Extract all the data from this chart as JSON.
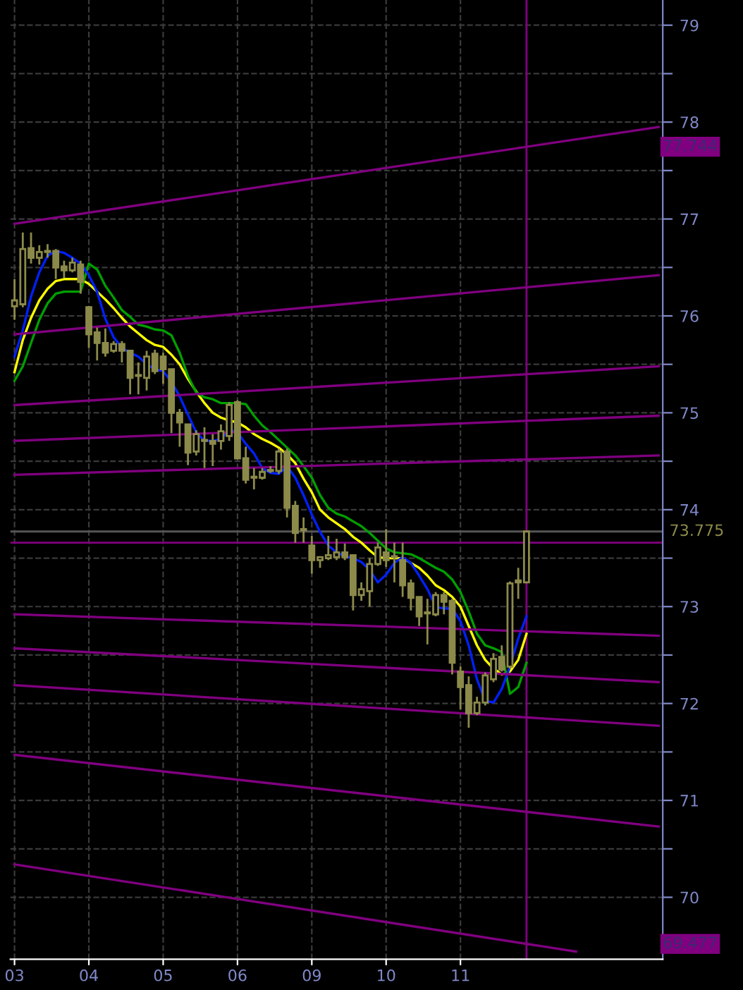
{
  "chart_data": {
    "type": "candlestick",
    "color": "#8c8a4a",
    "categories": [
      "03",
      null,
      null,
      null,
      null,
      null,
      null,
      null,
      null,
      "04",
      null,
      null,
      null,
      null,
      null,
      null,
      null,
      null,
      "05",
      null,
      null,
      null,
      null,
      null,
      null,
      null,
      null,
      "06",
      null,
      null,
      null,
      null,
      null,
      null,
      null,
      null,
      "09",
      null,
      null,
      null,
      null,
      null,
      null,
      null,
      null,
      "10",
      null,
      null,
      null,
      null,
      null,
      null,
      null,
      null,
      "11",
      null,
      null,
      null,
      null,
      null,
      null,
      null,
      null,
      null,
      null,
      null,
      null,
      null,
      null,
      null,
      null,
      null,
      null,
      null,
      null,
      null,
      null,
      null,
      null
    ],
    "ohlc": [
      [
        76.1,
        76.38,
        75.96,
        76.16
      ],
      [
        76.12,
        76.86,
        76.09,
        76.69
      ],
      [
        76.7,
        76.86,
        76.54,
        76.6
      ],
      [
        76.6,
        76.73,
        76.53,
        76.66
      ],
      [
        76.67,
        76.74,
        76.6,
        76.66
      ],
      [
        76.67,
        76.69,
        76.38,
        76.5
      ],
      [
        76.51,
        76.57,
        76.39,
        76.47
      ],
      [
        76.47,
        76.6,
        76.45,
        76.55
      ],
      [
        76.53,
        76.57,
        76.23,
        76.35
      ],
      [
        76.09,
        76.1,
        75.67,
        75.81
      ],
      [
        75.83,
        75.88,
        75.54,
        75.72
      ],
      [
        75.72,
        75.87,
        75.58,
        75.62
      ],
      [
        75.64,
        75.74,
        75.62,
        75.71
      ],
      [
        75.71,
        75.74,
        75.52,
        75.64
      ],
      [
        75.64,
        75.64,
        75.19,
        75.36
      ],
      [
        75.39,
        75.52,
        75.19,
        75.38
      ],
      [
        75.36,
        75.64,
        75.23,
        75.58
      ],
      [
        75.61,
        75.65,
        75.4,
        75.43
      ],
      [
        75.58,
        75.62,
        75.3,
        75.45
      ],
      [
        75.45,
        75.45,
        74.79,
        75.0
      ],
      [
        75.0,
        75.04,
        74.65,
        74.9
      ],
      [
        74.88,
        74.88,
        74.46,
        74.59
      ],
      [
        74.6,
        74.82,
        74.56,
        74.78
      ],
      [
        74.72,
        74.85,
        74.43,
        74.71
      ],
      [
        74.71,
        74.78,
        74.45,
        74.68
      ],
      [
        74.71,
        74.88,
        74.62,
        74.81
      ],
      [
        74.76,
        75.11,
        74.71,
        75.08
      ],
      [
        75.11,
        75.13,
        74.53,
        74.53
      ],
      [
        74.53,
        74.65,
        74.27,
        74.31
      ],
      [
        74.34,
        74.43,
        74.21,
        74.33
      ],
      [
        74.33,
        74.43,
        74.31,
        74.39
      ],
      [
        74.4,
        74.45,
        74.38,
        74.41
      ],
      [
        74.4,
        74.63,
        74.37,
        74.6
      ],
      [
        74.6,
        74.63,
        73.92,
        74.02
      ],
      [
        74.04,
        74.09,
        73.66,
        73.76
      ],
      [
        73.8,
        73.92,
        73.66,
        73.79
      ],
      [
        73.63,
        73.73,
        73.34,
        73.48
      ],
      [
        73.48,
        73.51,
        73.4,
        73.51
      ],
      [
        73.5,
        73.73,
        73.48,
        73.53
      ],
      [
        73.51,
        73.7,
        73.48,
        73.56
      ],
      [
        73.56,
        73.65,
        73.48,
        73.51
      ],
      [
        73.53,
        73.53,
        72.96,
        73.12
      ],
      [
        73.12,
        73.25,
        73.06,
        73.18
      ],
      [
        73.16,
        73.5,
        73.0,
        73.44
      ],
      [
        73.44,
        73.66,
        73.42,
        73.61
      ],
      [
        73.56,
        73.8,
        73.41,
        73.48
      ],
      [
        73.52,
        73.66,
        73.25,
        73.51
      ],
      [
        73.48,
        73.66,
        73.1,
        73.22
      ],
      [
        73.24,
        73.28,
        72.96,
        73.09
      ],
      [
        73.1,
        73.1,
        72.8,
        72.9
      ],
      [
        72.94,
        73.08,
        72.61,
        72.93
      ],
      [
        72.92,
        73.15,
        72.9,
        73.12
      ],
      [
        73.12,
        73.15,
        72.92,
        73.05
      ],
      [
        73.06,
        73.08,
        72.3,
        72.42
      ],
      [
        72.33,
        72.38,
        71.94,
        72.17
      ],
      [
        72.19,
        72.28,
        71.75,
        71.9
      ],
      [
        71.9,
        72.07,
        71.88,
        72.01
      ],
      [
        72.01,
        72.32,
        71.98,
        72.29
      ],
      [
        72.25,
        72.52,
        72.22,
        72.46
      ],
      [
        72.48,
        72.6,
        72.33,
        72.35
      ],
      [
        72.38,
        73.26,
        72.36,
        73.24
      ],
      [
        73.25,
        73.4,
        73.08,
        73.27
      ],
      [
        73.25,
        73.775,
        73.24,
        73.775
      ],
      null,
      null,
      null,
      null,
      null,
      null,
      null,
      null,
      null,
      null,
      null,
      null,
      null,
      null,
      null,
      null
    ],
    "series": [
      {
        "type": "line",
        "color": "#ffff00",
        "values": [
          75.42,
          75.75,
          75.98,
          76.16,
          76.28,
          76.36,
          76.38,
          76.38,
          76.38,
          76.33,
          76.25,
          76.17,
          76.08,
          75.98,
          75.89,
          75.82,
          75.75,
          75.7,
          75.68,
          75.6,
          75.5,
          75.35,
          75.22,
          75.1,
          75.0,
          74.95,
          74.92,
          74.9,
          74.85,
          74.78,
          74.73,
          74.69,
          74.64,
          74.57,
          74.48,
          74.32,
          74.18,
          74.0,
          73.92,
          73.86,
          73.8,
          73.72,
          73.66,
          73.58,
          73.51,
          73.5,
          73.5,
          73.5,
          73.45,
          73.4,
          73.32,
          73.22,
          73.17,
          73.1,
          73.0,
          72.8,
          72.6,
          72.45,
          72.36,
          72.3,
          72.33,
          72.45,
          72.72,
          null,
          null,
          null,
          null,
          null,
          null,
          null,
          null,
          null,
          null,
          null,
          null,
          null,
          null,
          null,
          null
        ]
      },
      {
        "type": "line",
        "color": "#00a000",
        "values": [
          75.33,
          75.48,
          75.72,
          75.96,
          76.13,
          76.23,
          76.25,
          76.25,
          76.25,
          76.54,
          76.48,
          76.31,
          76.19,
          76.06,
          75.99,
          75.91,
          75.89,
          75.86,
          75.85,
          75.8,
          75.62,
          75.38,
          75.21,
          75.16,
          75.14,
          75.1,
          75.1,
          75.1,
          75.09,
          74.97,
          74.87,
          74.8,
          74.72,
          74.64,
          74.56,
          74.45,
          74.33,
          74.15,
          74.02,
          73.96,
          73.93,
          73.88,
          73.83,
          73.76,
          73.68,
          73.6,
          73.56,
          73.55,
          73.54,
          73.5,
          73.45,
          73.4,
          73.36,
          73.28,
          73.15,
          72.95,
          72.72,
          72.6,
          72.57,
          72.53,
          72.1,
          72.17,
          72.42,
          null,
          null,
          null,
          null,
          null,
          null,
          null,
          null,
          null,
          null,
          null,
          null,
          null,
          null,
          null,
          null
        ]
      },
      {
        "type": "line",
        "color": "#0020ff",
        "values": [
          75.58,
          75.85,
          76.2,
          76.45,
          76.62,
          76.67,
          76.65,
          76.6,
          76.54,
          76.42,
          76.25,
          75.97,
          75.78,
          75.67,
          75.62,
          75.58,
          75.5,
          75.45,
          75.43,
          75.32,
          75.17,
          74.98,
          74.8,
          74.71,
          74.71,
          74.73,
          74.82,
          74.8,
          74.68,
          74.58,
          74.43,
          74.38,
          74.37,
          74.45,
          74.33,
          74.15,
          73.95,
          73.77,
          73.63,
          73.56,
          73.52,
          73.5,
          73.46,
          73.38,
          73.25,
          73.33,
          73.45,
          73.51,
          73.45,
          73.32,
          73.18,
          73.0,
          72.98,
          72.98,
          72.85,
          72.6,
          72.25,
          72.03,
          72.01,
          72.15,
          72.38,
          72.67,
          72.9,
          null,
          null,
          null,
          null,
          null,
          null,
          null,
          null,
          null,
          null,
          null,
          null,
          null,
          null,
          null,
          null
        ]
      },
      {
        "type": "line",
        "color": "#800080",
        "name": "77.744",
        "values": [
          76.95,
          null,
          null,
          null,
          null,
          null,
          null,
          null,
          null,
          null,
          null,
          null,
          null,
          null,
          null,
          null,
          null,
          null,
          null,
          null,
          null,
          null,
          null,
          null,
          null,
          null,
          null,
          null,
          null,
          null,
          null,
          null,
          null,
          null,
          null,
          null,
          null,
          null,
          null,
          null,
          null,
          null,
          null,
          null,
          null,
          null,
          null,
          null,
          null,
          null,
          null,
          null,
          null,
          null,
          null,
          null,
          null,
          null,
          null,
          null,
          null,
          null,
          null,
          null,
          null,
          null,
          null,
          null,
          null,
          null,
          null,
          null,
          null,
          null,
          null,
          null,
          null,
          null,
          77.95
        ]
      },
      {
        "type": "line",
        "color": "#800080",
        "values": [
          75.81,
          null,
          null,
          null,
          null,
          null,
          null,
          null,
          null,
          null,
          null,
          null,
          null,
          null,
          null,
          null,
          null,
          null,
          null,
          null,
          null,
          null,
          null,
          null,
          null,
          null,
          null,
          null,
          null,
          null,
          null,
          null,
          null,
          null,
          null,
          null,
          null,
          null,
          null,
          null,
          null,
          null,
          null,
          null,
          null,
          null,
          null,
          null,
          null,
          null,
          null,
          null,
          null,
          null,
          null,
          null,
          null,
          null,
          null,
          null,
          null,
          null,
          null,
          null,
          null,
          null,
          null,
          null,
          null,
          null,
          null,
          null,
          null,
          null,
          null,
          null,
          null,
          null,
          76.42
        ]
      },
      {
        "type": "line",
        "color": "#800080",
        "values": [
          75.08,
          null,
          null,
          null,
          null,
          null,
          null,
          null,
          null,
          null,
          null,
          null,
          null,
          null,
          null,
          null,
          null,
          null,
          null,
          null,
          null,
          null,
          null,
          null,
          null,
          null,
          null,
          null,
          null,
          null,
          null,
          null,
          null,
          null,
          null,
          null,
          null,
          null,
          null,
          null,
          null,
          null,
          null,
          null,
          null,
          null,
          null,
          null,
          null,
          null,
          null,
          null,
          null,
          null,
          null,
          null,
          null,
          null,
          null,
          null,
          null,
          null,
          null,
          null,
          null,
          null,
          null,
          null,
          null,
          null,
          null,
          null,
          null,
          null,
          null,
          null,
          null,
          null,
          75.48
        ]
      },
      {
        "type": "line",
        "color": "#800080",
        "values": [
          74.71,
          null,
          null,
          null,
          null,
          null,
          null,
          null,
          null,
          null,
          null,
          null,
          null,
          null,
          null,
          null,
          null,
          null,
          null,
          null,
          null,
          null,
          null,
          null,
          null,
          null,
          null,
          null,
          null,
          null,
          null,
          null,
          null,
          null,
          null,
          null,
          null,
          null,
          null,
          null,
          null,
          null,
          null,
          null,
          null,
          null,
          null,
          null,
          null,
          null,
          null,
          null,
          null,
          null,
          null,
          null,
          null,
          null,
          null,
          null,
          null,
          null,
          null,
          null,
          null,
          null,
          null,
          null,
          null,
          null,
          null,
          null,
          null,
          null,
          null,
          null,
          null,
          null,
          74.97
        ]
      },
      {
        "type": "line",
        "color": "#800080",
        "values": [
          74.36,
          null,
          null,
          null,
          null,
          null,
          null,
          null,
          null,
          null,
          null,
          null,
          null,
          null,
          null,
          null,
          null,
          null,
          null,
          null,
          null,
          null,
          null,
          null,
          null,
          null,
          null,
          null,
          null,
          null,
          null,
          null,
          null,
          null,
          null,
          null,
          null,
          null,
          null,
          null,
          null,
          null,
          null,
          null,
          null,
          null,
          null,
          null,
          null,
          null,
          null,
          null,
          null,
          null,
          null,
          null,
          null,
          null,
          null,
          null,
          null,
          null,
          null,
          null,
          null,
          null,
          null,
          null,
          null,
          null,
          null,
          null,
          null,
          null,
          null,
          null,
          null,
          null,
          74.56
        ]
      },
      {
        "type": "line",
        "color": "#800080",
        "values": [
          72.92,
          null,
          null,
          null,
          null,
          null,
          null,
          null,
          null,
          null,
          null,
          null,
          null,
          null,
          null,
          null,
          null,
          null,
          null,
          null,
          null,
          null,
          null,
          null,
          null,
          null,
          null,
          null,
          null,
          null,
          null,
          null,
          null,
          null,
          null,
          null,
          null,
          null,
          null,
          null,
          null,
          null,
          null,
          null,
          null,
          null,
          null,
          null,
          null,
          null,
          null,
          null,
          null,
          null,
          null,
          null,
          null,
          null,
          null,
          null,
          null,
          null,
          null,
          null,
          null,
          null,
          null,
          null,
          null,
          null,
          null,
          null,
          null,
          null,
          null,
          null,
          null,
          null,
          72.7
        ]
      },
      {
        "type": "line",
        "color": "#800080",
        "values": [
          72.57,
          null,
          null,
          null,
          null,
          null,
          null,
          null,
          null,
          null,
          null,
          null,
          null,
          null,
          null,
          null,
          null,
          null,
          null,
          null,
          null,
          null,
          null,
          null,
          null,
          null,
          null,
          null,
          null,
          null,
          null,
          null,
          null,
          null,
          null,
          null,
          null,
          null,
          null,
          null,
          null,
          null,
          null,
          null,
          null,
          null,
          null,
          null,
          null,
          null,
          null,
          null,
          null,
          null,
          null,
          null,
          null,
          null,
          null,
          null,
          null,
          null,
          null,
          null,
          null,
          null,
          null,
          null,
          null,
          null,
          null,
          null,
          null,
          null,
          null,
          null,
          null,
          null,
          72.22
        ]
      },
      {
        "type": "line",
        "color": "#800080",
        "values": [
          72.19,
          null,
          null,
          null,
          null,
          null,
          null,
          null,
          null,
          null,
          null,
          null,
          null,
          null,
          null,
          null,
          null,
          null,
          null,
          null,
          null,
          null,
          null,
          null,
          null,
          null,
          null,
          null,
          null,
          null,
          null,
          null,
          null,
          null,
          null,
          null,
          null,
          null,
          null,
          null,
          null,
          null,
          null,
          null,
          null,
          null,
          null,
          null,
          null,
          null,
          null,
          null,
          null,
          null,
          null,
          null,
          null,
          null,
          null,
          null,
          null,
          null,
          null,
          null,
          null,
          null,
          null,
          null,
          null,
          null,
          null,
          null,
          null,
          null,
          null,
          null,
          null,
          null,
          71.77
        ]
      },
      {
        "type": "line",
        "color": "#800080",
        "values": [
          71.47,
          null,
          null,
          null,
          null,
          null,
          null,
          null,
          null,
          null,
          null,
          null,
          null,
          null,
          null,
          null,
          null,
          null,
          null,
          null,
          null,
          null,
          null,
          null,
          null,
          null,
          null,
          null,
          null,
          null,
          null,
          null,
          null,
          null,
          null,
          null,
          null,
          null,
          null,
          null,
          null,
          null,
          null,
          null,
          null,
          null,
          null,
          null,
          null,
          null,
          null,
          null,
          null,
          null,
          null,
          null,
          null,
          null,
          null,
          null,
          null,
          null,
          null,
          null,
          null,
          null,
          null,
          null,
          null,
          null,
          null,
          null,
          null,
          null,
          null,
          null,
          null,
          null,
          70.73
        ]
      },
      {
        "type": "line",
        "color": "#800080",
        "name": "69.477",
        "values": [
          70.34,
          null,
          null,
          null,
          null,
          null,
          null,
          null,
          null,
          null,
          null,
          null,
          null,
          null,
          null,
          null,
          null,
          null,
          null,
          null,
          null,
          null,
          null,
          null,
          null,
          null,
          null,
          null,
          null,
          null,
          null,
          null,
          null,
          null,
          null,
          null,
          null,
          null,
          null,
          null,
          null,
          null,
          null,
          null,
          null,
          null,
          null,
          null,
          null,
          null,
          null,
          null,
          null,
          null,
          null,
          null,
          null,
          null,
          null,
          null,
          null,
          null,
          null,
          null,
          null,
          null,
          null,
          null,
          69.44,
          null,
          null,
          null,
          null,
          null,
          null,
          null,
          null,
          null,
          null
        ]
      }
    ],
    "ref_lines": [
      {
        "axis": "y",
        "value": 73.66,
        "color": "#800080"
      },
      {
        "axis": "y",
        "value": 73.775,
        "label": "73.775",
        "color": "#555555"
      }
    ],
    "ylim": [
      69.36,
      79.26
    ],
    "yticks": [
      70,
      {
        "value": 70.5,
        "label": null
      },
      71,
      {
        "value": 71.5,
        "label": null
      },
      72,
      {
        "value": 72.5,
        "label": null
      },
      73,
      {
        "value": 73.5,
        "label": null
      },
      74,
      {
        "value": 74.5,
        "label": null
      },
      75,
      {
        "value": 75.5,
        "label": null
      },
      76,
      {
        "value": 76.5,
        "label": null
      },
      77,
      {
        "value": 77.5,
        "label": null
      },
      78,
      {
        "value": 78.5,
        "label": null
      },
      79
    ],
    "grid": true
  }
}
